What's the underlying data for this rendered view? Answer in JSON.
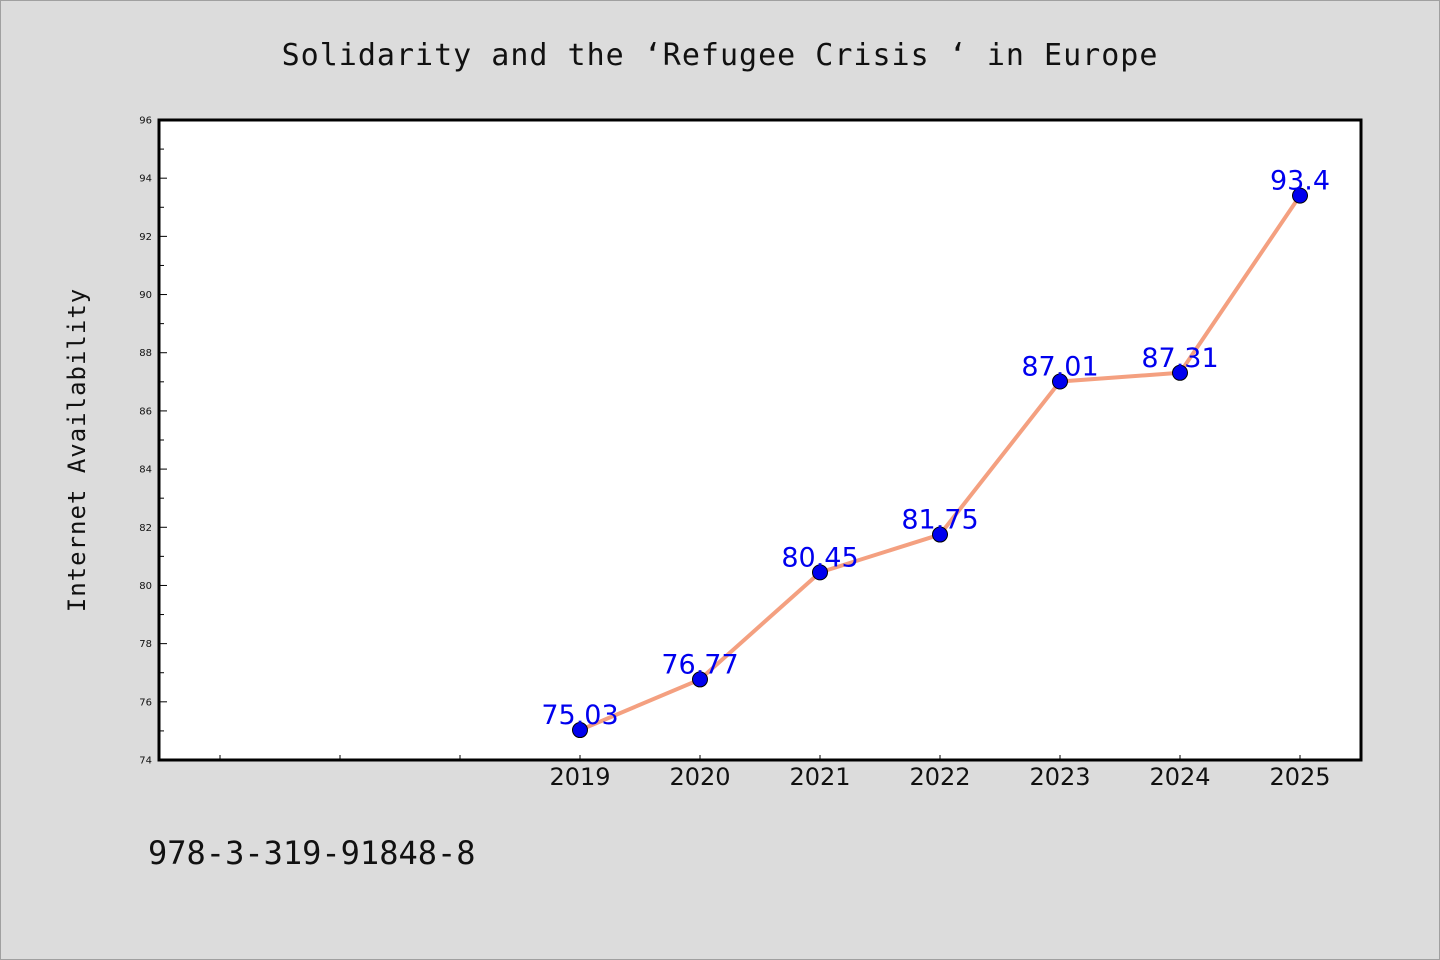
{
  "chart_data": {
    "type": "line",
    "title": "Solidarity and the  ‘Refugee Crisis ‘ in Europe",
    "xlabel": "",
    "ylabel": "Internet Availability",
    "categories": [
      "2019",
      "2020",
      "2021",
      "2022",
      "2023",
      "2024",
      "2025"
    ],
    "values": [
      75.03,
      76.77,
      80.45,
      81.75,
      87.01,
      87.31,
      93.4
    ],
    "data_labels": [
      "75.03",
      "76.77",
      "80.45",
      "81.75",
      "87.01",
      "87.31",
      "93.4"
    ],
    "ylim": [
      74,
      96
    ],
    "yticks": [
      74,
      76,
      78,
      80,
      82,
      84,
      86,
      88,
      90,
      92,
      94,
      96
    ],
    "grid": false,
    "line_color": "#f4a080",
    "marker_color": "#0000ee",
    "label_color": "#0000ee"
  },
  "footer": {
    "isbn": "978-3-319-91848-8"
  }
}
